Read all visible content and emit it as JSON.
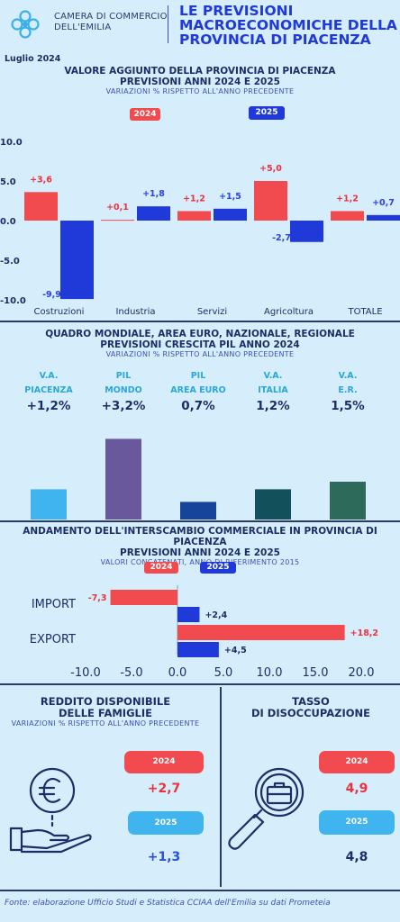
{
  "header": {
    "org_line1": "CAMERA DI COMMERCIO",
    "org_line2": "DELL'EMILIA",
    "title_line1": "LE PREVISIONI",
    "title_line2": "MACROECONOMICHE DELLA",
    "title_line3": "PROVINCIA DI PIACENZA",
    "date": "Luglio  2024"
  },
  "colors": {
    "y2024": "#f14a4f",
    "y2025": "#1f3ad9"
  },
  "section1": {
    "title_line1": "VALORE AGGIUNTO DELLA PROVINCIA DI PIACENZA",
    "title_line2": "PREVISIONI ANNI 2024 E 2025",
    "subtitle": "VARIAZIONI % RISPETTO ALL'ANNO PRECEDENTE",
    "legend_2024": "2024",
    "legend_2025": "2025"
  },
  "section2": {
    "title_line1": "QUADRO MONDIALE, AREA EURO, NAZIONALE, REGIONALE",
    "title_line2": "PREVISIONI CRESCITA PIL ANNO 2024",
    "subtitle": "VARIAZIONI % RISPETTO ALL'ANNO PRECEDENTE"
  },
  "section3": {
    "title_line1": "ANDAMENTO DELL'INTERSCAMBIO COMMERCIALE IN PROVINCIA DI PIACENZA",
    "title_line2": "PREVISIONI ANNI  2024 E 2025",
    "subtitle": "VALORI CONCATENATI, ANNO DI RIFERIMENTO 2015",
    "legend_2024": "2024",
    "legend_2025": "2025"
  },
  "section4": {
    "title_line1": "REDDITO DISPONIBILE",
    "title_line2": "DELLE FAMIGLIE",
    "subtitle": "VARIAZIONI % RISPETTO ALL'ANNO PRECEDENTE",
    "label_2024": "2024",
    "label_2025": "2025",
    "value_2024": "+2,7",
    "value_2025": "+1,3"
  },
  "section5": {
    "title_line1": "TASSO",
    "title_line2": "DI DISOCCUPAZIONE",
    "label_2024": "2024",
    "label_2025": "2025",
    "value_2024": "4,9",
    "value_2025": "4,8"
  },
  "footer": "Fonte: elaborazione Ufficio Studi e Statistica CCIAA dell'Emilia su dati Prometeia",
  "chart_data": [
    {
      "type": "bar",
      "categories": [
        "Costruzioni",
        "Industria",
        "Servizi",
        "Agricoltura",
        "TOTALE"
      ],
      "series": [
        {
          "name": "2024",
          "values": [
            3.6,
            0.1,
            1.2,
            5.0,
            1.2
          ],
          "labels": [
            "+3,6",
            "+0,1",
            "+1,2",
            "+5,0",
            "+1,2"
          ]
        },
        {
          "name": "2025",
          "values": [
            -9.9,
            1.8,
            1.5,
            -2.7,
            0.7
          ],
          "labels": [
            "-9,9",
            "+1,8",
            "+1,5",
            "-2,7",
            "+0,7"
          ]
        }
      ],
      "ylim": [
        -10,
        10
      ],
      "yticks": [
        "10.0",
        "5.0",
        "0.0",
        "-5.0",
        "-10.0"
      ],
      "grid": false
    },
    {
      "type": "bar",
      "categories": [
        {
          "line1": "V.A.",
          "line2": "PIACENZA",
          "label": "+1,2%",
          "color": "#3fb4ee"
        },
        {
          "line1": "PIL",
          "line2": "MONDO",
          "label": "+3,2%",
          "color": "#6a589d"
        },
        {
          "line1": "PIL",
          "line2": "AREA EURO",
          "label": "0,7%",
          "color": "#16449a"
        },
        {
          "line1": "V.A.",
          "line2": "ITALIA",
          "label": "1,2%",
          "color": "#12505c"
        },
        {
          "line1": "V.A.",
          "line2": "E.R.",
          "label": "1,5%",
          "color": "#2e6a5a"
        }
      ],
      "values": [
        1.2,
        3.2,
        0.7,
        1.2,
        1.5
      ]
    },
    {
      "type": "bar",
      "orientation": "horizontal",
      "categories": [
        "IMPORT",
        "EXPORT"
      ],
      "series": [
        {
          "name": "2024",
          "values": [
            -7.3,
            18.2
          ],
          "labels": [
            "-7,3",
            "+18,2"
          ]
        },
        {
          "name": "2025",
          "values": [
            2.4,
            4.5
          ],
          "labels": [
            "+2,4",
            "+4,5"
          ]
        }
      ],
      "xlim": [
        -10,
        20
      ],
      "xticks": [
        "-10.0",
        "-5.0",
        "0.0",
        "5.0",
        "10.0",
        "15.0",
        "20.0"
      ]
    }
  ]
}
